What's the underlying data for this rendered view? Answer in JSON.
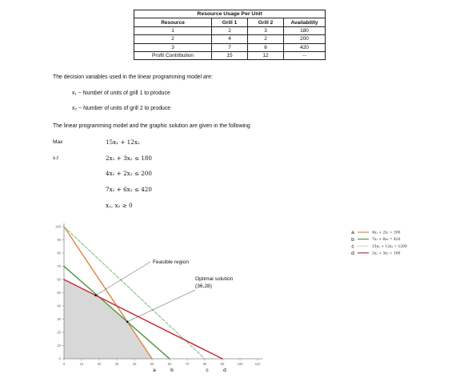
{
  "table": {
    "title": "Resource Usage Per Unit",
    "headers": [
      "Resource",
      "Grill 1",
      "Grill 2",
      "Availability"
    ],
    "rows": [
      [
        "1",
        "2",
        "3",
        "180"
      ],
      [
        "2",
        "4",
        "2",
        "200"
      ],
      [
        "3",
        "7",
        "6",
        "420"
      ],
      [
        "Profit Contribution",
        "15",
        "12",
        "--"
      ]
    ]
  },
  "text": {
    "decision_intro": "The decision variables used in the linear programming model are:",
    "x1_def": "x₁ − Number of units of grill 1 to produce",
    "x2_def": "x₂ − Number of units of grill 2 to produce",
    "model_intro": "The linear programming model and the graphic solution are given in the following",
    "max_label": "Max",
    "st_label": "s.t",
    "objective": "15x₁ + 12x₂",
    "constraints": [
      "2x₁ + 3x₂ ≤ 180",
      "4x₁ + 2x₂ ≤ 200",
      "7x₁ + 6x₂ ≤ 420",
      "x₁, x₂ ≥ 0"
    ]
  },
  "chart_data": {
    "type": "line",
    "xlim": [
      0,
      110
    ],
    "ylim": [
      0,
      100
    ],
    "x_ticks": [
      "0",
      "10",
      "20",
      "30",
      "40",
      "50",
      "60",
      "70",
      "80",
      "90",
      "100",
      "110"
    ],
    "y_ticks": [
      "0",
      "10",
      "20",
      "30",
      "40",
      "50",
      "60",
      "70",
      "80",
      "90",
      "100"
    ],
    "grid": false,
    "legend_position": "top-right",
    "series": [
      {
        "letter": "a",
        "equation": "4x₁ + 2x₂ = 200",
        "color": "#e08a4a",
        "dash": "solid",
        "points": [
          [
            0,
            100
          ],
          [
            50,
            0
          ]
        ]
      },
      {
        "letter": "b",
        "equation": "7x₁ + 6x₂ = 420",
        "color": "#5a9a52",
        "dash": "solid",
        "points": [
          [
            0,
            70
          ],
          [
            60,
            0
          ]
        ]
      },
      {
        "letter": "c",
        "equation": "15x₁ + 12x₂ = 1200",
        "color": "#8ec58e",
        "dash": "dashed",
        "points": [
          [
            0,
            100
          ],
          [
            80,
            0
          ]
        ]
      },
      {
        "letter": "d",
        "equation": "2x₁ + 3x₂ = 180",
        "color": "#c9303c",
        "dash": "solid",
        "points": [
          [
            0,
            60
          ],
          [
            90,
            0
          ]
        ]
      }
    ],
    "feasible_region": [
      [
        0,
        0
      ],
      [
        0,
        60
      ],
      [
        18,
        48
      ],
      [
        36,
        28
      ],
      [
        50,
        0
      ]
    ],
    "feasible_color": "#d8d8d8",
    "axis_letters": [
      {
        "letter": "a",
        "x": 50
      },
      {
        "letter": "b",
        "x": 60
      },
      {
        "letter": "c",
        "x": 80
      },
      {
        "letter": "d",
        "x": 90
      }
    ],
    "annotations": {
      "feasible_label": "Feasible region",
      "feasible_anchor": [
        18,
        48
      ],
      "optimal_label": "Optimal solution",
      "optimal_value": "(36,28)",
      "optimal_point": [
        36,
        28
      ]
    }
  }
}
